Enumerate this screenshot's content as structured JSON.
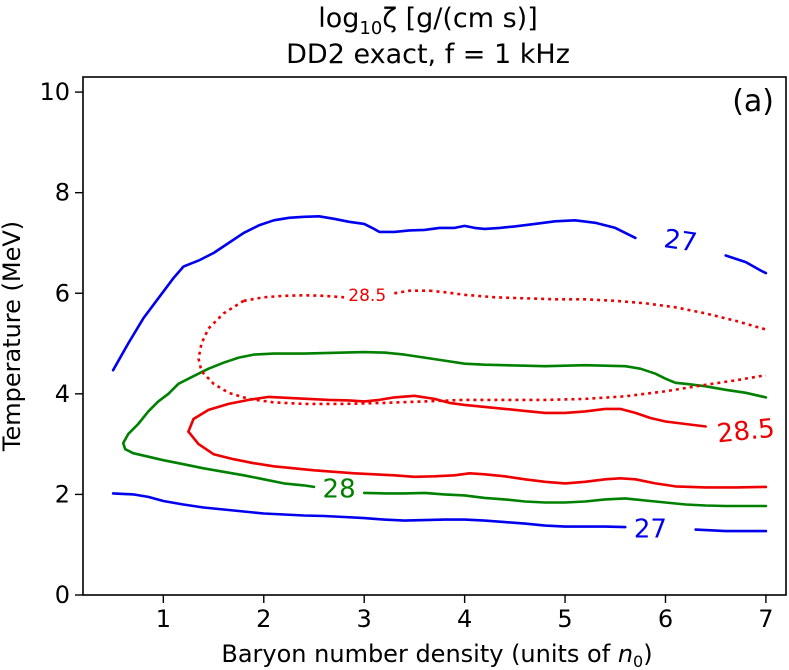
{
  "chart_data": {
    "type": "line",
    "title_line1": "log",
    "title_sub": "10",
    "title_rest": "ζ [g/(cm s)]",
    "subtitle": "DD2 exact, f = 1 kHz",
    "xlabel": "Baryon number density (units of ",
    "xlabel_sym": "n",
    "xlabel_sub": "0",
    "xlabel_end": ")",
    "ylabel": "Temperature (MeV)",
    "panel_label": "(a)",
    "xlim": [
      0.2,
      7.2
    ],
    "ylim": [
      0,
      10.3
    ],
    "xticks": [
      "1",
      "2",
      "3",
      "4",
      "5",
      "6",
      "7"
    ],
    "yticks": [
      "0",
      "2",
      "4",
      "6",
      "8",
      "10"
    ],
    "grid": false,
    "series": [
      {
        "name": "27",
        "color": "#0000ee",
        "dash": "",
        "points": [
          [
            0.5,
            4.47
          ],
          [
            0.65,
            5.0
          ],
          [
            0.8,
            5.5
          ],
          [
            0.95,
            5.9
          ],
          [
            1.1,
            6.3
          ],
          [
            1.2,
            6.53
          ],
          [
            1.35,
            6.65
          ],
          [
            1.5,
            6.8
          ],
          [
            1.65,
            7.0
          ],
          [
            1.8,
            7.2
          ],
          [
            1.95,
            7.35
          ],
          [
            2.1,
            7.45
          ],
          [
            2.25,
            7.5
          ],
          [
            2.4,
            7.52
          ],
          [
            2.55,
            7.53
          ],
          [
            2.7,
            7.48
          ],
          [
            2.85,
            7.42
          ],
          [
            3.0,
            7.38
          ],
          [
            3.08,
            7.3
          ],
          [
            3.15,
            7.22
          ],
          [
            3.3,
            7.22
          ],
          [
            3.45,
            7.25
          ],
          [
            3.6,
            7.26
          ],
          [
            3.75,
            7.3
          ],
          [
            3.9,
            7.3
          ],
          [
            4.0,
            7.34
          ],
          [
            4.1,
            7.3
          ],
          [
            4.2,
            7.28
          ],
          [
            4.35,
            7.3
          ],
          [
            4.5,
            7.33
          ],
          [
            4.7,
            7.38
          ],
          [
            4.9,
            7.43
          ],
          [
            5.1,
            7.45
          ],
          [
            5.3,
            7.4
          ],
          [
            5.5,
            7.3
          ],
          [
            5.7,
            7.1
          ]
        ],
        "points2": [
          [
            6.6,
            6.75
          ],
          [
            6.8,
            6.62
          ],
          [
            6.95,
            6.45
          ],
          [
            7.0,
            6.4
          ]
        ],
        "label_at": [
          6.15,
          7.03
        ],
        "label_rot": 8
      },
      {
        "name": "27",
        "color": "#0000ee",
        "dash": "",
        "points": [
          [
            0.5,
            2.02
          ],
          [
            0.7,
            2.0
          ],
          [
            0.85,
            1.95
          ],
          [
            1.0,
            1.87
          ],
          [
            1.2,
            1.8
          ],
          [
            1.4,
            1.74
          ],
          [
            1.6,
            1.7
          ],
          [
            1.8,
            1.66
          ],
          [
            2.0,
            1.62
          ],
          [
            2.2,
            1.6
          ],
          [
            2.4,
            1.58
          ],
          [
            2.6,
            1.57
          ],
          [
            2.8,
            1.55
          ],
          [
            3.0,
            1.53
          ],
          [
            3.2,
            1.5
          ],
          [
            3.4,
            1.48
          ],
          [
            3.6,
            1.49
          ],
          [
            3.8,
            1.5
          ],
          [
            4.0,
            1.5
          ],
          [
            4.2,
            1.48
          ],
          [
            4.4,
            1.45
          ],
          [
            4.6,
            1.42
          ],
          [
            4.8,
            1.38
          ],
          [
            5.0,
            1.36
          ],
          [
            5.2,
            1.36
          ],
          [
            5.4,
            1.36
          ],
          [
            5.6,
            1.35
          ]
        ],
        "points2": [
          [
            6.3,
            1.3
          ],
          [
            6.6,
            1.27
          ],
          [
            7.0,
            1.27
          ]
        ],
        "label_at": [
          5.85,
          1.3
        ],
        "label_rot": 0
      },
      {
        "name": "28",
        "color": "#008000",
        "dash": "",
        "points": [
          [
            1.05,
            4.0
          ],
          [
            1.15,
            4.2
          ],
          [
            1.3,
            4.35
          ],
          [
            1.45,
            4.5
          ],
          [
            1.6,
            4.62
          ],
          [
            1.75,
            4.72
          ],
          [
            1.9,
            4.78
          ],
          [
            2.1,
            4.8
          ],
          [
            2.4,
            4.8
          ],
          [
            2.8,
            4.82
          ],
          [
            3.0,
            4.83
          ],
          [
            3.2,
            4.82
          ],
          [
            3.4,
            4.78
          ],
          [
            3.6,
            4.72
          ],
          [
            3.8,
            4.66
          ],
          [
            4.0,
            4.6
          ],
          [
            4.2,
            4.58
          ],
          [
            4.4,
            4.57
          ],
          [
            4.6,
            4.56
          ],
          [
            4.8,
            4.55
          ],
          [
            5.0,
            4.56
          ],
          [
            5.2,
            4.57
          ],
          [
            5.4,
            4.56
          ],
          [
            5.6,
            4.55
          ],
          [
            5.75,
            4.5
          ],
          [
            5.9,
            4.4
          ],
          [
            6.0,
            4.3
          ],
          [
            6.1,
            4.22
          ],
          [
            6.2,
            4.2
          ],
          [
            6.4,
            4.15
          ],
          [
            6.6,
            4.08
          ],
          [
            6.8,
            4.02
          ],
          [
            7.0,
            3.93
          ]
        ],
        "points2": [],
        "label_at": null,
        "label_rot": 0
      },
      {
        "name": "28",
        "color": "#008000",
        "dash": "",
        "points": [
          [
            1.05,
            4.0
          ],
          [
            0.95,
            3.85
          ],
          [
            0.85,
            3.65
          ],
          [
            0.75,
            3.4
          ],
          [
            0.65,
            3.2
          ],
          [
            0.6,
            3.02
          ],
          [
            0.62,
            2.9
          ],
          [
            0.7,
            2.82
          ],
          [
            0.85,
            2.75
          ],
          [
            1.0,
            2.68
          ],
          [
            1.2,
            2.6
          ],
          [
            1.4,
            2.52
          ],
          [
            1.6,
            2.45
          ],
          [
            1.8,
            2.38
          ],
          [
            2.0,
            2.3
          ],
          [
            2.2,
            2.22
          ],
          [
            2.4,
            2.18
          ],
          [
            2.5,
            2.15
          ]
        ],
        "points2": [
          [
            3.0,
            2.03
          ],
          [
            3.2,
            2.02
          ],
          [
            3.4,
            2.02
          ],
          [
            3.6,
            2.03
          ],
          [
            3.8,
            2.0
          ],
          [
            4.0,
            1.98
          ],
          [
            4.2,
            1.93
          ],
          [
            4.4,
            1.9
          ],
          [
            4.6,
            1.86
          ],
          [
            4.8,
            1.84
          ],
          [
            5.0,
            1.84
          ],
          [
            5.2,
            1.86
          ],
          [
            5.4,
            1.9
          ],
          [
            5.6,
            1.92
          ],
          [
            5.8,
            1.88
          ],
          [
            6.0,
            1.84
          ],
          [
            6.2,
            1.8
          ],
          [
            6.4,
            1.78
          ],
          [
            6.6,
            1.77
          ],
          [
            6.8,
            1.77
          ],
          [
            7.0,
            1.77
          ]
        ],
        "label_at": [
          2.75,
          2.1
        ],
        "label_rot": 0
      },
      {
        "name": "28.5",
        "color": "#ee0000",
        "dash": "",
        "points": [
          [
            1.25,
            3.25
          ],
          [
            1.3,
            3.5
          ],
          [
            1.45,
            3.68
          ],
          [
            1.65,
            3.8
          ],
          [
            1.85,
            3.88
          ],
          [
            2.05,
            3.94
          ],
          [
            2.25,
            3.92
          ],
          [
            2.45,
            3.9
          ],
          [
            2.65,
            3.88
          ],
          [
            2.85,
            3.87
          ],
          [
            3.0,
            3.85
          ],
          [
            3.15,
            3.88
          ],
          [
            3.3,
            3.93
          ],
          [
            3.5,
            3.96
          ],
          [
            3.7,
            3.9
          ],
          [
            3.85,
            3.82
          ],
          [
            4.0,
            3.78
          ],
          [
            4.2,
            3.74
          ],
          [
            4.4,
            3.7
          ],
          [
            4.6,
            3.66
          ],
          [
            4.8,
            3.62
          ],
          [
            5.0,
            3.62
          ],
          [
            5.2,
            3.65
          ],
          [
            5.4,
            3.7
          ],
          [
            5.55,
            3.7
          ],
          [
            5.7,
            3.62
          ],
          [
            5.85,
            3.52
          ],
          [
            6.0,
            3.45
          ],
          [
            6.2,
            3.4
          ],
          [
            6.4,
            3.35
          ]
        ],
        "points2": [],
        "label_at": [
          6.8,
          3.25
        ],
        "label_rot": -6
      },
      {
        "name": "28.5",
        "color": "#ee0000",
        "dash": "",
        "points": [
          [
            1.25,
            3.25
          ],
          [
            1.35,
            3.0
          ],
          [
            1.5,
            2.8
          ],
          [
            1.7,
            2.7
          ],
          [
            1.9,
            2.62
          ],
          [
            2.1,
            2.56
          ],
          [
            2.3,
            2.52
          ],
          [
            2.5,
            2.48
          ],
          [
            2.7,
            2.45
          ],
          [
            2.9,
            2.42
          ],
          [
            3.1,
            2.4
          ],
          [
            3.3,
            2.38
          ],
          [
            3.5,
            2.35
          ],
          [
            3.7,
            2.36
          ],
          [
            3.9,
            2.38
          ],
          [
            4.05,
            2.42
          ],
          [
            4.2,
            2.4
          ],
          [
            4.4,
            2.36
          ],
          [
            4.6,
            2.3
          ],
          [
            4.8,
            2.25
          ],
          [
            5.0,
            2.22
          ],
          [
            5.2,
            2.25
          ],
          [
            5.4,
            2.3
          ],
          [
            5.55,
            2.32
          ],
          [
            5.7,
            2.3
          ],
          [
            5.9,
            2.22
          ],
          [
            6.1,
            2.16
          ],
          [
            6.4,
            2.14
          ],
          [
            6.7,
            2.14
          ],
          [
            7.0,
            2.15
          ]
        ],
        "points2": [],
        "label_at": null,
        "label_rot": 0
      },
      {
        "name": "28.5",
        "color": "#ee0000",
        "dash": "3 4",
        "points": [
          [
            1.8,
            5.85
          ],
          [
            2.0,
            5.92
          ],
          [
            2.2,
            5.95
          ],
          [
            2.4,
            5.96
          ],
          [
            2.6,
            5.95
          ],
          [
            2.8,
            5.92
          ]
        ],
        "points2": [
          [
            3.65,
            6.05
          ],
          [
            3.8,
            6.02
          ],
          [
            4.0,
            5.97
          ],
          [
            4.3,
            5.92
          ],
          [
            4.6,
            5.9
          ],
          [
            4.9,
            5.88
          ],
          [
            5.2,
            5.88
          ],
          [
            5.5,
            5.85
          ],
          [
            5.8,
            5.8
          ],
          [
            6.1,
            5.72
          ],
          [
            6.4,
            5.6
          ],
          [
            6.7,
            5.45
          ],
          [
            7.0,
            5.28
          ]
        ],
        "points3": [
          [
            3.3,
            6.0
          ],
          [
            3.45,
            6.05
          ],
          [
            3.65,
            6.05
          ]
        ],
        "label_at": [
          3.03,
          5.95
        ],
        "label_rot": 0
      },
      {
        "name": "28.5",
        "color": "#ee0000",
        "dash": "3 4",
        "points": [
          [
            1.8,
            5.85
          ],
          [
            1.6,
            5.6
          ],
          [
            1.45,
            5.3
          ],
          [
            1.38,
            5.0
          ],
          [
            1.35,
            4.7
          ],
          [
            1.38,
            4.45
          ],
          [
            1.5,
            4.2
          ],
          [
            1.65,
            4.02
          ],
          [
            1.85,
            3.9
          ],
          [
            2.1,
            3.83
          ],
          [
            2.4,
            3.8
          ],
          [
            2.8,
            3.8
          ],
          [
            3.2,
            3.82
          ],
          [
            3.6,
            3.85
          ],
          [
            4.0,
            3.88
          ],
          [
            4.4,
            3.88
          ],
          [
            4.8,
            3.88
          ],
          [
            5.2,
            3.9
          ],
          [
            5.6,
            3.95
          ],
          [
            6.0,
            4.05
          ],
          [
            6.4,
            4.18
          ],
          [
            6.7,
            4.27
          ],
          [
            7.0,
            4.37
          ]
        ],
        "points2": [],
        "label_at": null,
        "label_rot": 0
      }
    ]
  }
}
